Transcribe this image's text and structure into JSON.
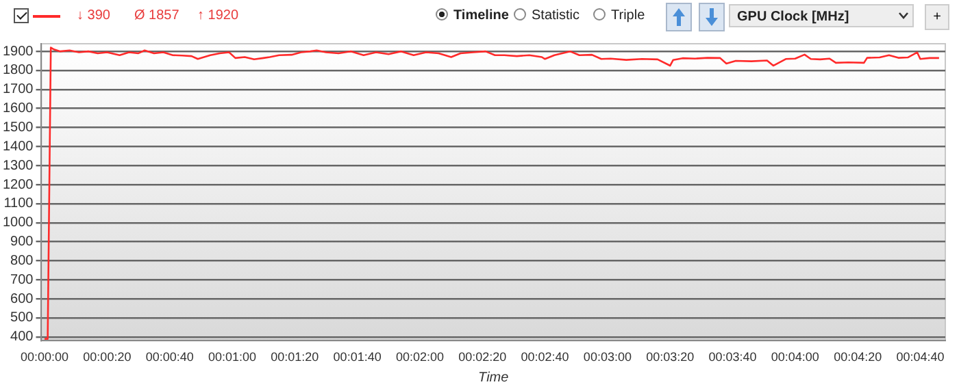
{
  "chart_data": {
    "type": "line",
    "xlabel": "Time",
    "annotations": [
      "↓ 390",
      "Ø 1857",
      "↑ 1920",
      "Timeline",
      "Statistic",
      "Triple",
      "GPU Clock [MHz]",
      "+"
    ],
    "x": [
      0,
      1,
      2,
      3,
      5,
      8,
      11,
      14,
      17,
      20,
      24,
      27,
      30,
      32,
      35,
      38,
      41,
      44,
      47,
      49,
      51,
      53,
      56,
      59,
      61,
      64,
      67,
      70,
      72,
      75,
      79,
      82,
      85,
      87,
      90,
      94,
      98,
      102,
      106,
      110,
      114,
      118,
      122,
      126,
      130,
      133,
      137,
      141,
      144,
      147,
      151,
      155,
      159,
      160,
      163,
      168,
      171,
      175,
      178,
      181,
      186,
      191,
      196,
      200,
      201,
      204,
      208,
      212,
      216,
      218,
      221,
      226,
      231,
      233,
      237,
      240,
      243,
      245,
      248,
      251,
      253,
      257,
      262,
      263,
      267,
      270,
      273,
      276,
      279,
      280,
      283,
      286
    ],
    "series": [
      {
        "color": "#ff2a2a",
        "values": [
          390,
          390,
          1920,
          1910,
          1900,
          1905,
          1895,
          1900,
          1890,
          1895,
          1880,
          1895,
          1890,
          1905,
          1890,
          1895,
          1880,
          1878,
          1875,
          1860,
          1870,
          1880,
          1890,
          1895,
          1865,
          1870,
          1858,
          1865,
          1870,
          1880,
          1882,
          1895,
          1900,
          1905,
          1895,
          1890,
          1900,
          1880,
          1895,
          1885,
          1900,
          1880,
          1895,
          1890,
          1870,
          1890,
          1895,
          1900,
          1880,
          1880,
          1875,
          1880,
          1870,
          1860,
          1880,
          1900,
          1880,
          1882,
          1860,
          1862,
          1855,
          1860,
          1858,
          1825,
          1855,
          1864,
          1862,
          1866,
          1865,
          1836,
          1850,
          1848,
          1852,
          1825,
          1860,
          1862,
          1883,
          1860,
          1858,
          1862,
          1840,
          1842,
          1840,
          1866,
          1868,
          1880,
          1866,
          1868,
          1895,
          1860,
          1865,
          1865
        ]
      }
    ],
    "xlim": [
      -1,
      288
    ],
    "ylim": [
      380,
      1940
    ],
    "xticks": [
      {
        "value": 0,
        "label": "00:00:00"
      },
      {
        "value": 20,
        "label": "00:00:20"
      },
      {
        "value": 40,
        "label": "00:00:40"
      },
      {
        "value": 60,
        "label": "00:01:00"
      },
      {
        "value": 80,
        "label": "00:01:20"
      },
      {
        "value": 100,
        "label": "00:01:40"
      },
      {
        "value": 120,
        "label": "00:02:00"
      },
      {
        "value": 140,
        "label": "00:02:20"
      },
      {
        "value": 160,
        "label": "00:02:40"
      },
      {
        "value": 180,
        "label": "00:03:00"
      },
      {
        "value": 200,
        "label": "00:03:20"
      },
      {
        "value": 220,
        "label": "00:03:40"
      },
      {
        "value": 240,
        "label": "00:04:00"
      },
      {
        "value": 260,
        "label": "00:04:20"
      },
      {
        "value": 280,
        "label": "00:04:40"
      }
    ],
    "yticks": [
      400,
      500,
      600,
      700,
      800,
      900,
      1000,
      1100,
      1200,
      1300,
      1400,
      1500,
      1600,
      1700,
      1800,
      1900
    ],
    "grid": "y",
    "marker": "none",
    "line_style": "solid"
  }
}
